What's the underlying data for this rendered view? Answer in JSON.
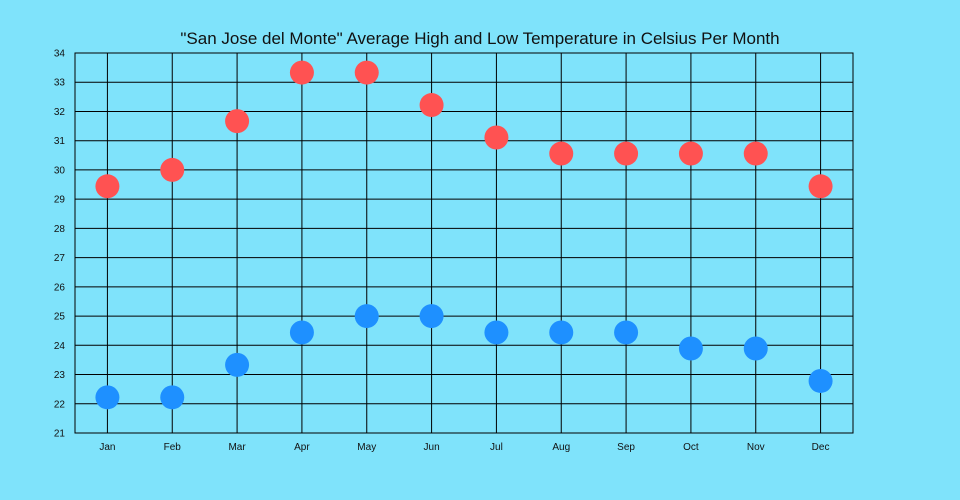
{
  "chart_data": {
    "type": "scatter",
    "title": "\"San Jose del Monte\" Average High and Low Temperature in Celsius Per Month",
    "xlabel": "",
    "ylabel": "",
    "categories": [
      "Jan",
      "Feb",
      "Mar",
      "Apr",
      "May",
      "Jun",
      "Jul",
      "Aug",
      "Sep",
      "Oct",
      "Nov",
      "Dec"
    ],
    "ylim": [
      21,
      34
    ],
    "yticks": [
      21,
      22,
      23,
      24,
      25,
      26,
      27,
      28,
      29,
      30,
      31,
      32,
      33,
      34
    ],
    "grid": true,
    "series": [
      {
        "color": "#ff5252",
        "values": [
          29.44,
          30.0,
          31.67,
          33.33,
          33.33,
          32.22,
          31.11,
          30.56,
          30.56,
          30.56,
          30.56,
          29.44
        ]
      },
      {
        "color": "#1e90ff",
        "values": [
          22.22,
          22.22,
          23.33,
          24.44,
          25.0,
          25.0,
          24.44,
          24.44,
          24.44,
          23.89,
          23.89,
          22.78
        ]
      }
    ],
    "background_color": "#7fe3fb",
    "grid_color": "#000000"
  }
}
